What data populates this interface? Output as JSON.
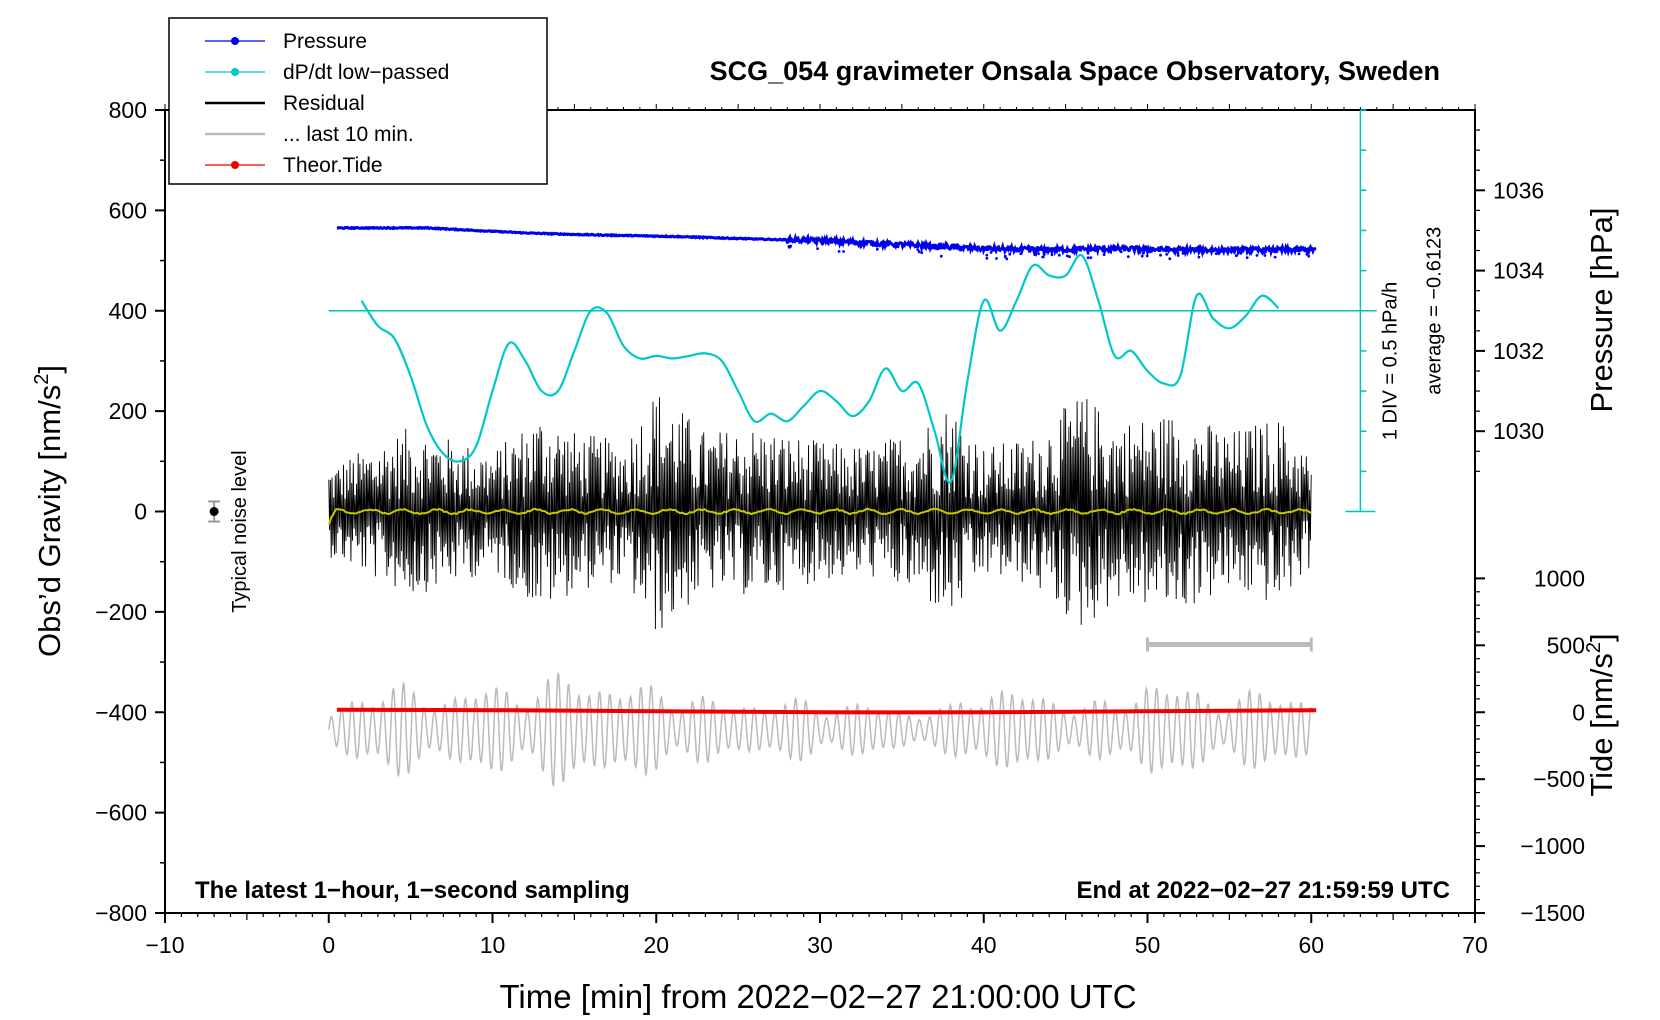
{
  "chart_data": {
    "type": "line",
    "title": "SCG_054 gravimeter Onsala Space Observatory, Sweden",
    "xlabel": "Time [min] from 2022−02−27 21:00:00 UTC",
    "xlim": [
      -10,
      70
    ],
    "x_ticks": [
      "−10",
      "0",
      "10",
      "20",
      "30",
      "40",
      "50",
      "60",
      "70"
    ],
    "left_axis": {
      "label": "Obs’d Gravity [nm/s",
      "label_sup": "2",
      "label_end": "]",
      "ylim": [
        -800,
        800
      ],
      "ticks": [
        "−800",
        "−600",
        "−400",
        "−200",
        "0",
        "200",
        "400",
        "600",
        "800"
      ]
    },
    "pressure_axis": {
      "label": "Pressure [hPa]",
      "ticks": [
        "1030",
        "1032",
        "1034",
        "1036"
      ],
      "values_hpa": [
        1030,
        1032,
        1034,
        1036
      ],
      "gravity_at_1030": 160,
      "gravity_per_hpa": 80
    },
    "tide_axis": {
      "label": "Tide [nm/s",
      "label_sup": "2",
      "label_end": "]",
      "ticks": [
        "1000",
        "500",
        "0",
        "−500",
        "−1000",
        "−1500"
      ],
      "values_nm": [
        1000,
        500,
        0,
        -500,
        -1000,
        -1500
      ],
      "gravity_at_0": -400,
      "gravity_per_nm": 0.2667
    },
    "legend": [
      {
        "label": "Pressure",
        "color": "#0000ee",
        "marker": true
      },
      {
        "label": "dP/dt low−passed",
        "color": "#00c8c8",
        "marker": true
      },
      {
        "label": "Residual",
        "color": "#000000",
        "marker": false
      },
      {
        "label": "... last 10 min.",
        "color": "#bbbbbb",
        "marker": false
      },
      {
        "label": "Theor.Tide",
        "color": "#ee0000",
        "marker": true
      }
    ],
    "series": [
      {
        "name": "Pressure",
        "unit": "gravity-scaled",
        "x": [
          0.5,
          3,
          6,
          9,
          12,
          15,
          18,
          21,
          24,
          27,
          30,
          33,
          36,
          39,
          42,
          45,
          48,
          51,
          54,
          57,
          60.3
        ],
        "values": [
          565,
          565,
          565,
          560,
          555,
          552,
          550,
          548,
          545,
          542,
          540,
          535,
          530,
          525,
          522,
          522,
          524,
          522,
          521,
          521,
          522
        ]
      },
      {
        "name": "dP/dt low−passed",
        "x": [
          2,
          3,
          4,
          5,
          6,
          7,
          8,
          9,
          10,
          11,
          12,
          13,
          14,
          15,
          16,
          17,
          18,
          19,
          20,
          21,
          22,
          23,
          24,
          25,
          26,
          27,
          28,
          29,
          30,
          31,
          32,
          33,
          34,
          35,
          36,
          37,
          38,
          39,
          40,
          41,
          42,
          43,
          44,
          45,
          46,
          47,
          48,
          49,
          50,
          51,
          52,
          53,
          54,
          55,
          56,
          57,
          58
        ],
        "values": [
          420,
          370,
          345,
          270,
          170,
          115,
          100,
          130,
          240,
          335,
          300,
          240,
          240,
          320,
          400,
          395,
          330,
          305,
          310,
          305,
          310,
          315,
          300,
          240,
          180,
          195,
          180,
          210,
          240,
          220,
          190,
          220,
          285,
          240,
          255,
          160,
          60,
          260,
          420,
          360,
          420,
          490,
          470,
          470,
          510,
          420,
          310,
          320,
          280,
          255,
          270,
          430,
          385,
          365,
          390,
          430,
          405
        ]
      },
      {
        "name": "Residual",
        "x_range": [
          0,
          60
        ],
        "amplitude_envelope": [
          [
            0,
            90
          ],
          [
            5,
            170
          ],
          [
            10,
            120
          ],
          [
            13,
            200
          ],
          [
            15,
            160
          ],
          [
            18,
            140
          ],
          [
            20,
            250
          ],
          [
            23,
            160
          ],
          [
            26,
            170
          ],
          [
            30,
            140
          ],
          [
            33,
            130
          ],
          [
            36,
            170
          ],
          [
            38,
            220
          ],
          [
            40,
            130
          ],
          [
            43,
            150
          ],
          [
            46,
            240
          ],
          [
            48,
            180
          ],
          [
            52,
            200
          ],
          [
            55,
            160
          ],
          [
            58,
            190
          ],
          [
            60,
            110
          ]
        ]
      },
      {
        "name": "Residual (smoothed)",
        "color": "#c8c800",
        "x_range": [
          0,
          60
        ],
        "values": [
          0
        ]
      },
      {
        "name": "... last 10 min.",
        "unit": "nm/s^2 tide scale",
        "x_range": [
          0,
          60
        ],
        "amplitude_envelope": [
          [
            0,
            100
          ],
          [
            3,
            340
          ],
          [
            6,
            230
          ],
          [
            9,
            280
          ],
          [
            12,
            300
          ],
          [
            15,
            380
          ],
          [
            18,
            300
          ],
          [
            21,
            280
          ],
          [
            24,
            180
          ],
          [
            27,
            200
          ],
          [
            30,
            190
          ],
          [
            33,
            170
          ],
          [
            36,
            130
          ],
          [
            38,
            150
          ],
          [
            40,
            320
          ],
          [
            43,
            240
          ],
          [
            46,
            190
          ],
          [
            48,
            170
          ],
          [
            50,
            370
          ],
          [
            52,
            280
          ],
          [
            55,
            220
          ],
          [
            58,
            270
          ],
          [
            60,
            220
          ]
        ]
      },
      {
        "name": "Theor.Tide",
        "x": [
          0.5,
          10,
          20,
          30,
          40,
          50,
          60.3
        ],
        "values": [
          -395,
          -396,
          -398,
          -400,
          -400,
          -398,
          -396
        ]
      }
    ],
    "noise_marker": {
      "x": -7,
      "y": 0,
      "error": 20
    },
    "noise_label": "Typical noise level",
    "interval_bar": {
      "x_start": 50,
      "x_end": 60,
      "y": -265
    },
    "dpdt_scale": {
      "label": "1 DIV = 0.5 hPa/h",
      "average_label": "average = −0.6123",
      "baseline_y": 400,
      "x": 63
    },
    "footer_left": "The latest 1−hour, 1−second sampling",
    "footer_right": "End at 2022−02−27 21:59:59 UTC"
  }
}
